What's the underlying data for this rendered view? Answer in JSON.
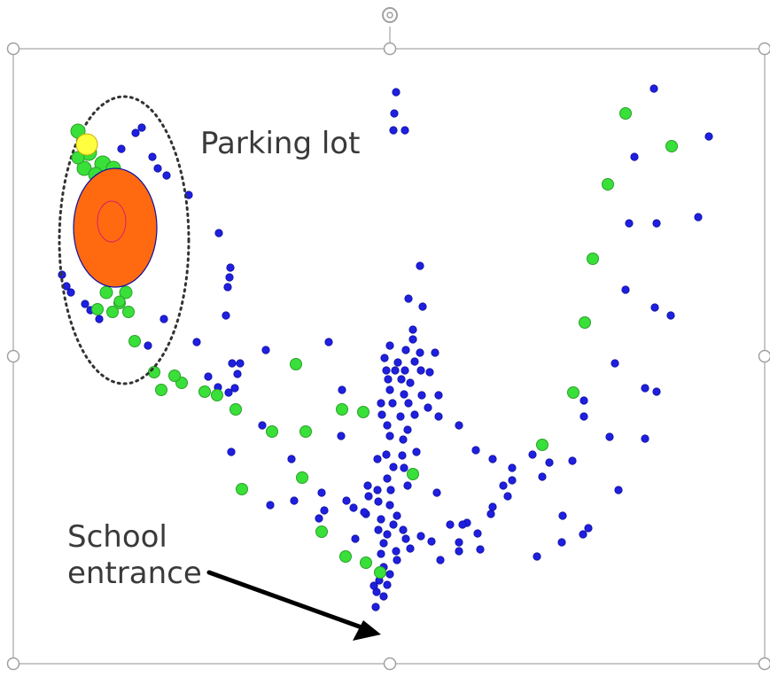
{
  "labels": {
    "parking_lot": "Parking lot",
    "school_entrance_line1": "School",
    "school_entrance_line2": "entrance"
  },
  "colors": {
    "background": "#ffffff",
    "frame": "#c8c8c8",
    "handle_fill": "#ffffff",
    "handle_stroke": "#a0a0a0",
    "dot_blue": "#1f1fe0",
    "dot_blue_stroke": "#1010a0",
    "dot_green": "#39e039",
    "dot_green_stroke": "#2aa02a",
    "orange": "#ff6a10",
    "yellow": "#ffff40",
    "arrow": "#000000",
    "ellipse_stroke": "#333333"
  },
  "icons": {
    "handles": "selection-handle-icon",
    "rotate": "rotate-handle-icon",
    "arrow": "arrow-icon"
  }
}
